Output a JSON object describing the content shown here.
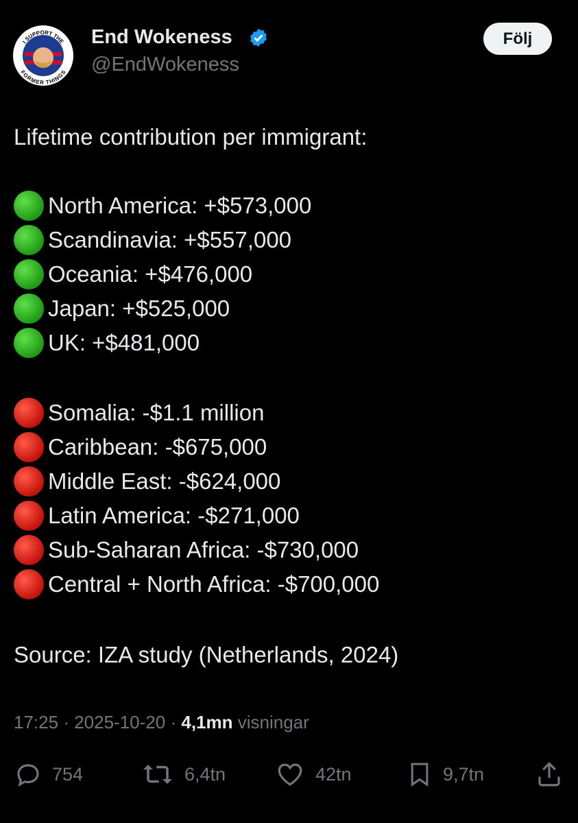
{
  "author": {
    "name": "End Wokeness",
    "handle": "@EndWokeness",
    "avatar_text": [
      "I SUPPORT THE",
      "FORMER THINGS"
    ]
  },
  "follow_button": "Följ",
  "tweet": {
    "intro": "Lifetime contribution per immigrant:",
    "positive": [
      "North America: +$573,000",
      "Scandinavia: +$557,000",
      "Oceania: +$476,000",
      "Japan: +$525,000",
      "UK: +$481,000"
    ],
    "negative": [
      "Somalia: -$1.1 million",
      "Caribbean: -$675,000",
      "Middle East: -$624,000",
      "Latin America: -$271,000",
      "Sub-Saharan Africa: -$730,000",
      "Central + North Africa: -$700,000"
    ],
    "source": "Source: IZA study (Netherlands, 2024)"
  },
  "meta": {
    "time": "17:25",
    "separator": "·",
    "date": "2025-10-20",
    "views": "4,1mn",
    "views_label": "visningar"
  },
  "actions": {
    "replies": "754",
    "reposts": "6,4tn",
    "likes": "42tn",
    "bookmarks": "9,7tn"
  }
}
